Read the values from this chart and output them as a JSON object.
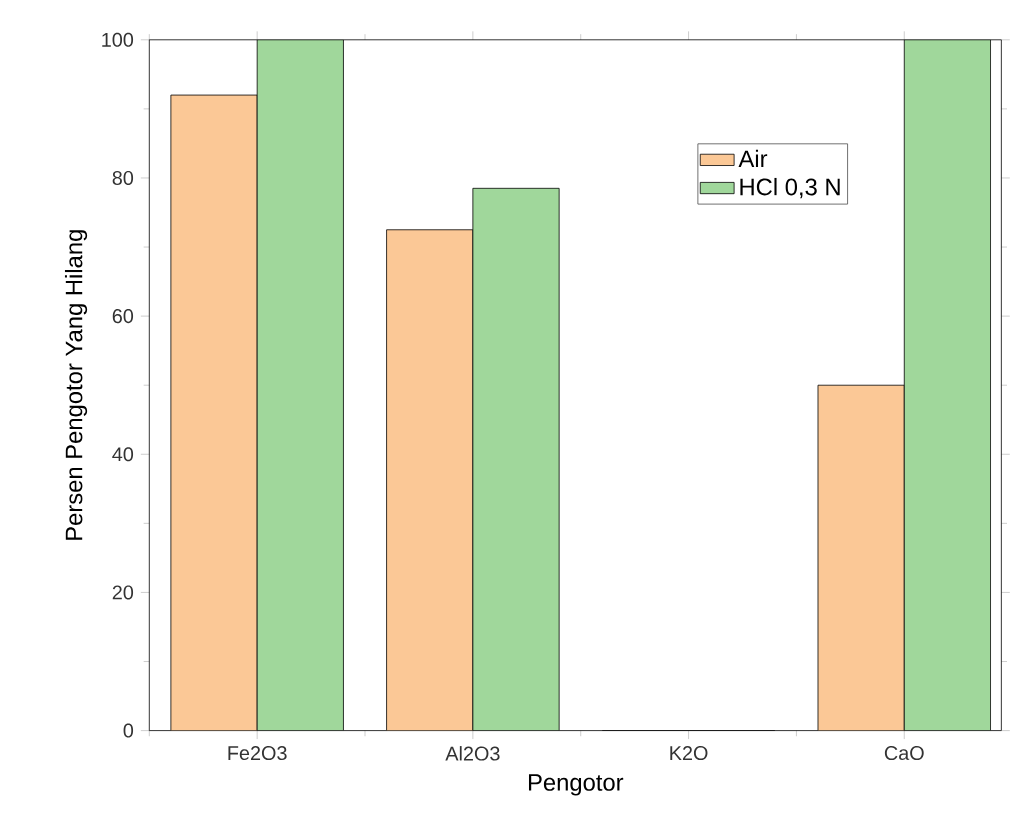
{
  "chart_data": {
    "type": "bar",
    "xlabel": "Pengotor",
    "ylabel": "Persen Pengotor Yang Hilang",
    "categories": [
      "Fe2O3",
      "Al2O3",
      "K2O",
      "CaO"
    ],
    "series": [
      {
        "name": "Air",
        "color": "#fbc896",
        "values": [
          92,
          72.5,
          0,
          50
        ]
      },
      {
        "name": "HCl 0,3 N",
        "color": "#a0d79b",
        "values": [
          100,
          78.5,
          0,
          100
        ]
      }
    ],
    "ylim": [
      0,
      100
    ],
    "yticks": [
      0,
      20,
      40,
      60,
      80,
      100
    ],
    "legend": "top right",
    "grid": false
  }
}
